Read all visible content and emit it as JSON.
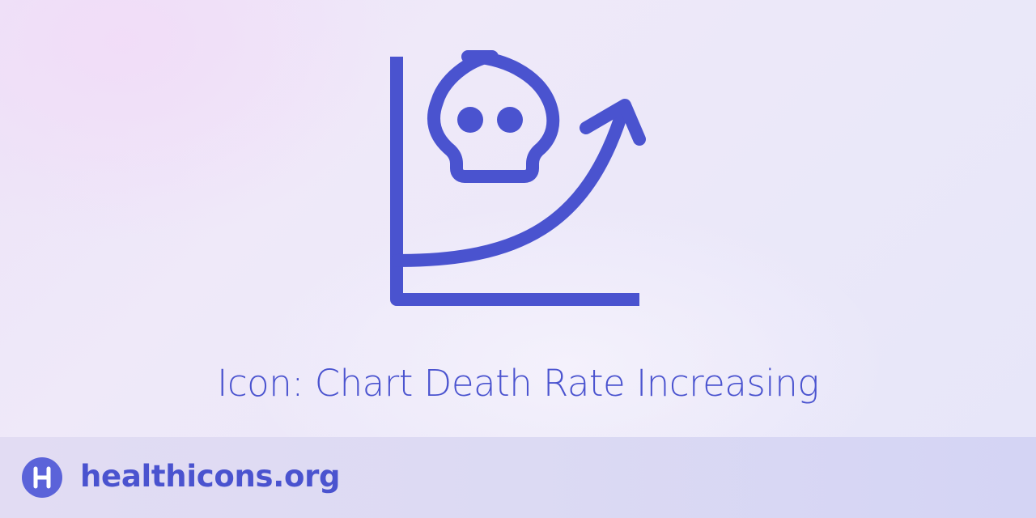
{
  "card": {
    "icon": "chart-death-rate-increasing-icon",
    "title": "Icon: Chart Death Rate Increasing"
  },
  "footer": {
    "logo_icon": "healthicons-logo-icon",
    "site": "healthicons.org"
  },
  "colors": {
    "accent": "#4a53cf",
    "badge": "#5b63d9",
    "background": "#ece8f9",
    "footer_background": "#dcdaf3"
  }
}
